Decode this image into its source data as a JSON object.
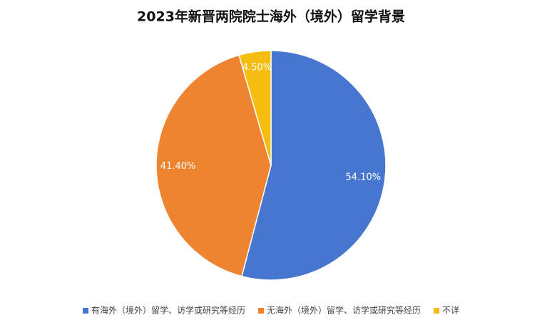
{
  "chart_data": {
    "type": "pie",
    "title": "2023年新晋两院院士海外（境外）留学背景",
    "categories": [
      "有海外（境外）留学、访学或研究等经历",
      "无海外（境外）留学、访学或研究等经历",
      "不详"
    ],
    "values": [
      54.1,
      41.4,
      4.5
    ],
    "value_labels": [
      "54.10%",
      "41.40%",
      "4.50%"
    ],
    "colors": [
      "#4676cf",
      "#ee8430",
      "#f4bd0f"
    ],
    "legend": "bottom"
  }
}
